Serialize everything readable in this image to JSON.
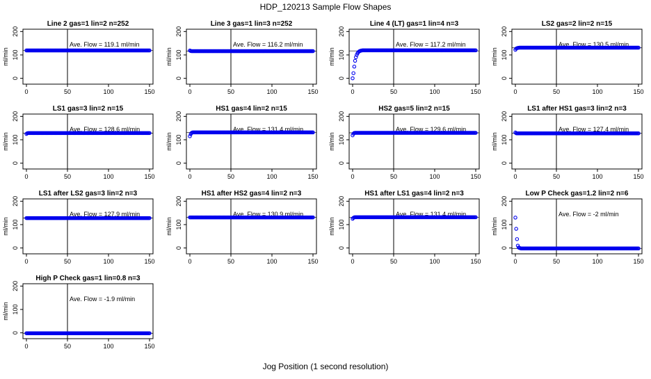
{
  "title": "HDP_120213  Sample Flow Shapes",
  "xlabel": "Jog Position (1 second resolution)",
  "chart_data": [
    {
      "type": "scatter",
      "title": "Line 2 gas=1 lin=2 n=252",
      "ylabel": "ml/min",
      "xlim": [
        0,
        150
      ],
      "ylim": [
        -25,
        210
      ],
      "xticks": [
        0,
        50,
        100,
        150
      ],
      "yticks": [
        0,
        100,
        200
      ],
      "vline": 50,
      "hline": 119.1,
      "annotation": "Ave. Flow =  119.1  ml/min",
      "series": [
        {
          "x_start": 0,
          "x_end": 150,
          "values": [
            119.1
          ],
          "color": "#0000ee"
        }
      ]
    },
    {
      "type": "scatter",
      "title": "Line 3 gas=1 lin=3 n=252",
      "ylabel": "ml/min",
      "xlim": [
        0,
        150
      ],
      "ylim": [
        -25,
        210
      ],
      "xticks": [
        0,
        50,
        100,
        150
      ],
      "yticks": [
        0,
        100,
        200
      ],
      "vline": 50,
      "hline": 116.2,
      "annotation": "Ave. Flow =  116.2  ml/min",
      "series": [
        {
          "x_start": 0,
          "x_end": 150,
          "values": [
            119,
            117,
            116.2
          ],
          "color": "#0000ee"
        }
      ]
    },
    {
      "type": "scatter",
      "title": "Line 4 (LT) gas=1 lin=4 n=3",
      "ylabel": "ml/min",
      "xlim": [
        0,
        150
      ],
      "ylim": [
        -25,
        210
      ],
      "xticks": [
        0,
        50,
        100,
        150
      ],
      "yticks": [
        0,
        100,
        200
      ],
      "vline": 50,
      "hline": 117.2,
      "annotation": "Ave. Flow =  117.2  ml/min",
      "series": [
        {
          "x_start": 0,
          "x_end": 150,
          "values": [
            0,
            22,
            50,
            75,
            90,
            100,
            107,
            112,
            115,
            117,
            118,
            119,
            119.5
          ],
          "color": "#0000ee"
        }
      ]
    },
    {
      "type": "scatter",
      "title": "LS2 gas=2 lin=2 n=15",
      "ylabel": "ml/min",
      "xlim": [
        0,
        150
      ],
      "ylim": [
        -25,
        210
      ],
      "xticks": [
        0,
        50,
        100,
        150
      ],
      "yticks": [
        0,
        100,
        200
      ],
      "vline": 50,
      "hline": 130.5,
      "annotation": "Ave. Flow =  130.5  ml/min",
      "series": [
        {
          "x_start": 0,
          "x_end": 150,
          "values": [
            122,
            127,
            129,
            130,
            130.5,
            131
          ],
          "color": "#0000ee"
        }
      ]
    },
    {
      "type": "scatter",
      "title": "LS1 gas=3 lin=2 n=15",
      "ylabel": "ml/min",
      "xlim": [
        0,
        150
      ],
      "ylim": [
        -25,
        210
      ],
      "xticks": [
        0,
        50,
        100,
        150
      ],
      "yticks": [
        0,
        100,
        200
      ],
      "vline": 50,
      "hline": 128.6,
      "annotation": "Ave. Flow =  128.6  ml/min",
      "series": [
        {
          "x_start": 0,
          "x_end": 150,
          "values": [
            125,
            128,
            128.6
          ],
          "color": "#0000ee"
        }
      ]
    },
    {
      "type": "scatter",
      "title": "HS1 gas=4 lin=2 n=15",
      "ylabel": "ml/min",
      "xlim": [
        0,
        150
      ],
      "ylim": [
        -25,
        210
      ],
      "xticks": [
        0,
        50,
        100,
        150
      ],
      "yticks": [
        0,
        100,
        200
      ],
      "vline": 50,
      "hline": 131.4,
      "annotation": "Ave. Flow =  131.4  ml/min",
      "series": [
        {
          "x_start": 0,
          "x_end": 150,
          "values": [
            115,
            124,
            129,
            131,
            131.4
          ],
          "color": "#0000ee"
        }
      ]
    },
    {
      "type": "scatter",
      "title": "HS2 gas=5 lin=2 n=15",
      "ylabel": "ml/min",
      "xlim": [
        0,
        150
      ],
      "ylim": [
        -25,
        210
      ],
      "xticks": [
        0,
        50,
        100,
        150
      ],
      "yticks": [
        0,
        100,
        200
      ],
      "vline": 50,
      "hline": 129.6,
      "annotation": "Ave. Flow =  129.6  ml/min",
      "series": [
        {
          "x_start": 0,
          "x_end": 150,
          "values": [
            119,
            126,
            129,
            129.6
          ],
          "color": "#0000ee"
        }
      ]
    },
    {
      "type": "scatter",
      "title": "LS1 after HS1 gas=3 lin=2 n=3",
      "ylabel": "ml/min",
      "xlim": [
        0,
        150
      ],
      "ylim": [
        -25,
        210
      ],
      "xticks": [
        0,
        50,
        100,
        150
      ],
      "yticks": [
        0,
        100,
        200
      ],
      "vline": 50,
      "hline": 127.4,
      "annotation": "Ave. Flow =  127.4  ml/min",
      "series": [
        {
          "x_start": 0,
          "x_end": 150,
          "values": [
            131,
            128,
            127.4
          ],
          "color": "#0000ee"
        }
      ]
    },
    {
      "type": "scatter",
      "title": "LS1 after LS2 gas=3 lin=2 n=3",
      "ylabel": "ml/min",
      "xlim": [
        0,
        150
      ],
      "ylim": [
        -25,
        210
      ],
      "xticks": [
        0,
        50,
        100,
        150
      ],
      "yticks": [
        0,
        100,
        200
      ],
      "vline": 50,
      "hline": 127.9,
      "annotation": "Ave. Flow =  127.9  ml/min",
      "series": [
        {
          "x_start": 0,
          "x_end": 150,
          "values": [
            127.9
          ],
          "color": "#0000ee"
        }
      ]
    },
    {
      "type": "scatter",
      "title": "HS1 after HS2 gas=4 lin=2 n=3",
      "ylabel": "ml/min",
      "xlim": [
        0,
        150
      ],
      "ylim": [
        -25,
        210
      ],
      "xticks": [
        0,
        50,
        100,
        150
      ],
      "yticks": [
        0,
        100,
        200
      ],
      "vline": 50,
      "hline": 130.9,
      "annotation": "Ave. Flow =  130.9  ml/min",
      "series": [
        {
          "x_start": 0,
          "x_end": 150,
          "values": [
            130.9
          ],
          "color": "#0000ee"
        }
      ]
    },
    {
      "type": "scatter",
      "title": "HS1 after LS1 gas=4 lin=2 n=3",
      "ylabel": "ml/min",
      "xlim": [
        0,
        150
      ],
      "ylim": [
        -25,
        210
      ],
      "xticks": [
        0,
        50,
        100,
        150
      ],
      "yticks": [
        0,
        100,
        200
      ],
      "vline": 50,
      "hline": 131.4,
      "annotation": "Ave. Flow =  131.4  ml/min",
      "series": [
        {
          "x_start": 0,
          "x_end": 150,
          "values": [
            125,
            129,
            131,
            131.4
          ],
          "color": "#0000ee"
        }
      ]
    },
    {
      "type": "scatter",
      "title": "Low P Check gas=1.2 lin=2 n=6",
      "ylabel": "ml/min",
      "xlim": [
        0,
        150
      ],
      "ylim": [
        -25,
        210
      ],
      "xticks": [
        0,
        50,
        100,
        150
      ],
      "yticks": [
        0,
        100,
        200
      ],
      "vline": 50,
      "hline": -2,
      "annotation": "Ave. Flow =  -2  ml/min",
      "series": [
        {
          "x_start": 0,
          "x_end": 150,
          "values": [
            130,
            82,
            38,
            10,
            2,
            0,
            -1,
            -2
          ],
          "color": "#0000ee"
        }
      ]
    },
    {
      "type": "scatter",
      "title": "High P Check gas=1 lin=0.8 n=3",
      "ylabel": "ml/min",
      "xlim": [
        0,
        150
      ],
      "ylim": [
        -25,
        210
      ],
      "xticks": [
        0,
        50,
        100,
        150
      ],
      "yticks": [
        0,
        100,
        200
      ],
      "vline": 50,
      "hline": -1.9,
      "annotation": "Ave. Flow =  -1.9  ml/min",
      "series": [
        {
          "x_start": 0,
          "x_end": 150,
          "values": [
            -1.9
          ],
          "color": "#0000ee"
        }
      ]
    }
  ]
}
